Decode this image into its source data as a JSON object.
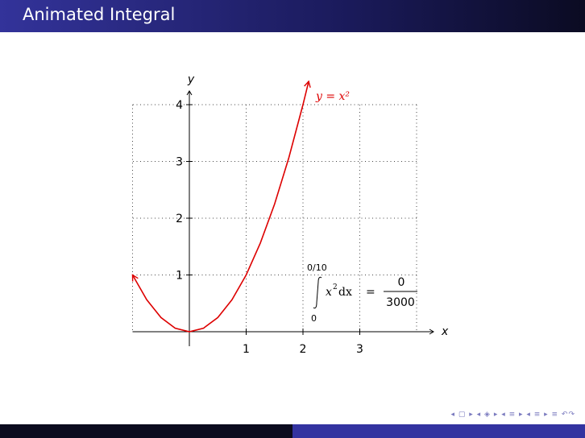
{
  "slide": {
    "title": "Animated Integral",
    "nav_symbols": "◂ ▢ ▸ ◂ ◈ ▸ ◂ ≡ ▸ ◂ ≡ ▸   ≡   ↶↷"
  },
  "chart_data": {
    "type": "line",
    "xlabel": "x",
    "ylabel": "y",
    "xlim": [
      -1,
      4
    ],
    "ylim": [
      0,
      4.4
    ],
    "x_ticks": [
      1,
      2,
      3
    ],
    "y_ticks": [
      1,
      2,
      3,
      4
    ],
    "grid": true,
    "series": [
      {
        "name": "y = x²",
        "color": "#dd0000",
        "x": [
          -1,
          -0.75,
          -0.5,
          -0.25,
          0,
          0.25,
          0.5,
          0.75,
          1,
          1.25,
          1.5,
          1.75,
          2,
          2.1
        ],
        "y": [
          1,
          0.5625,
          0.25,
          0.0625,
          0,
          0.0625,
          0.25,
          0.5625,
          1,
          1.5625,
          2.25,
          3.0625,
          4,
          4.41
        ]
      }
    ],
    "annotation": {
      "upper_limit": "0/10",
      "lower_limit": "0",
      "integrand": "x",
      "exponent": "2",
      "differential": "dx",
      "equals": "=",
      "numerator": "0",
      "denominator": "3000"
    }
  }
}
